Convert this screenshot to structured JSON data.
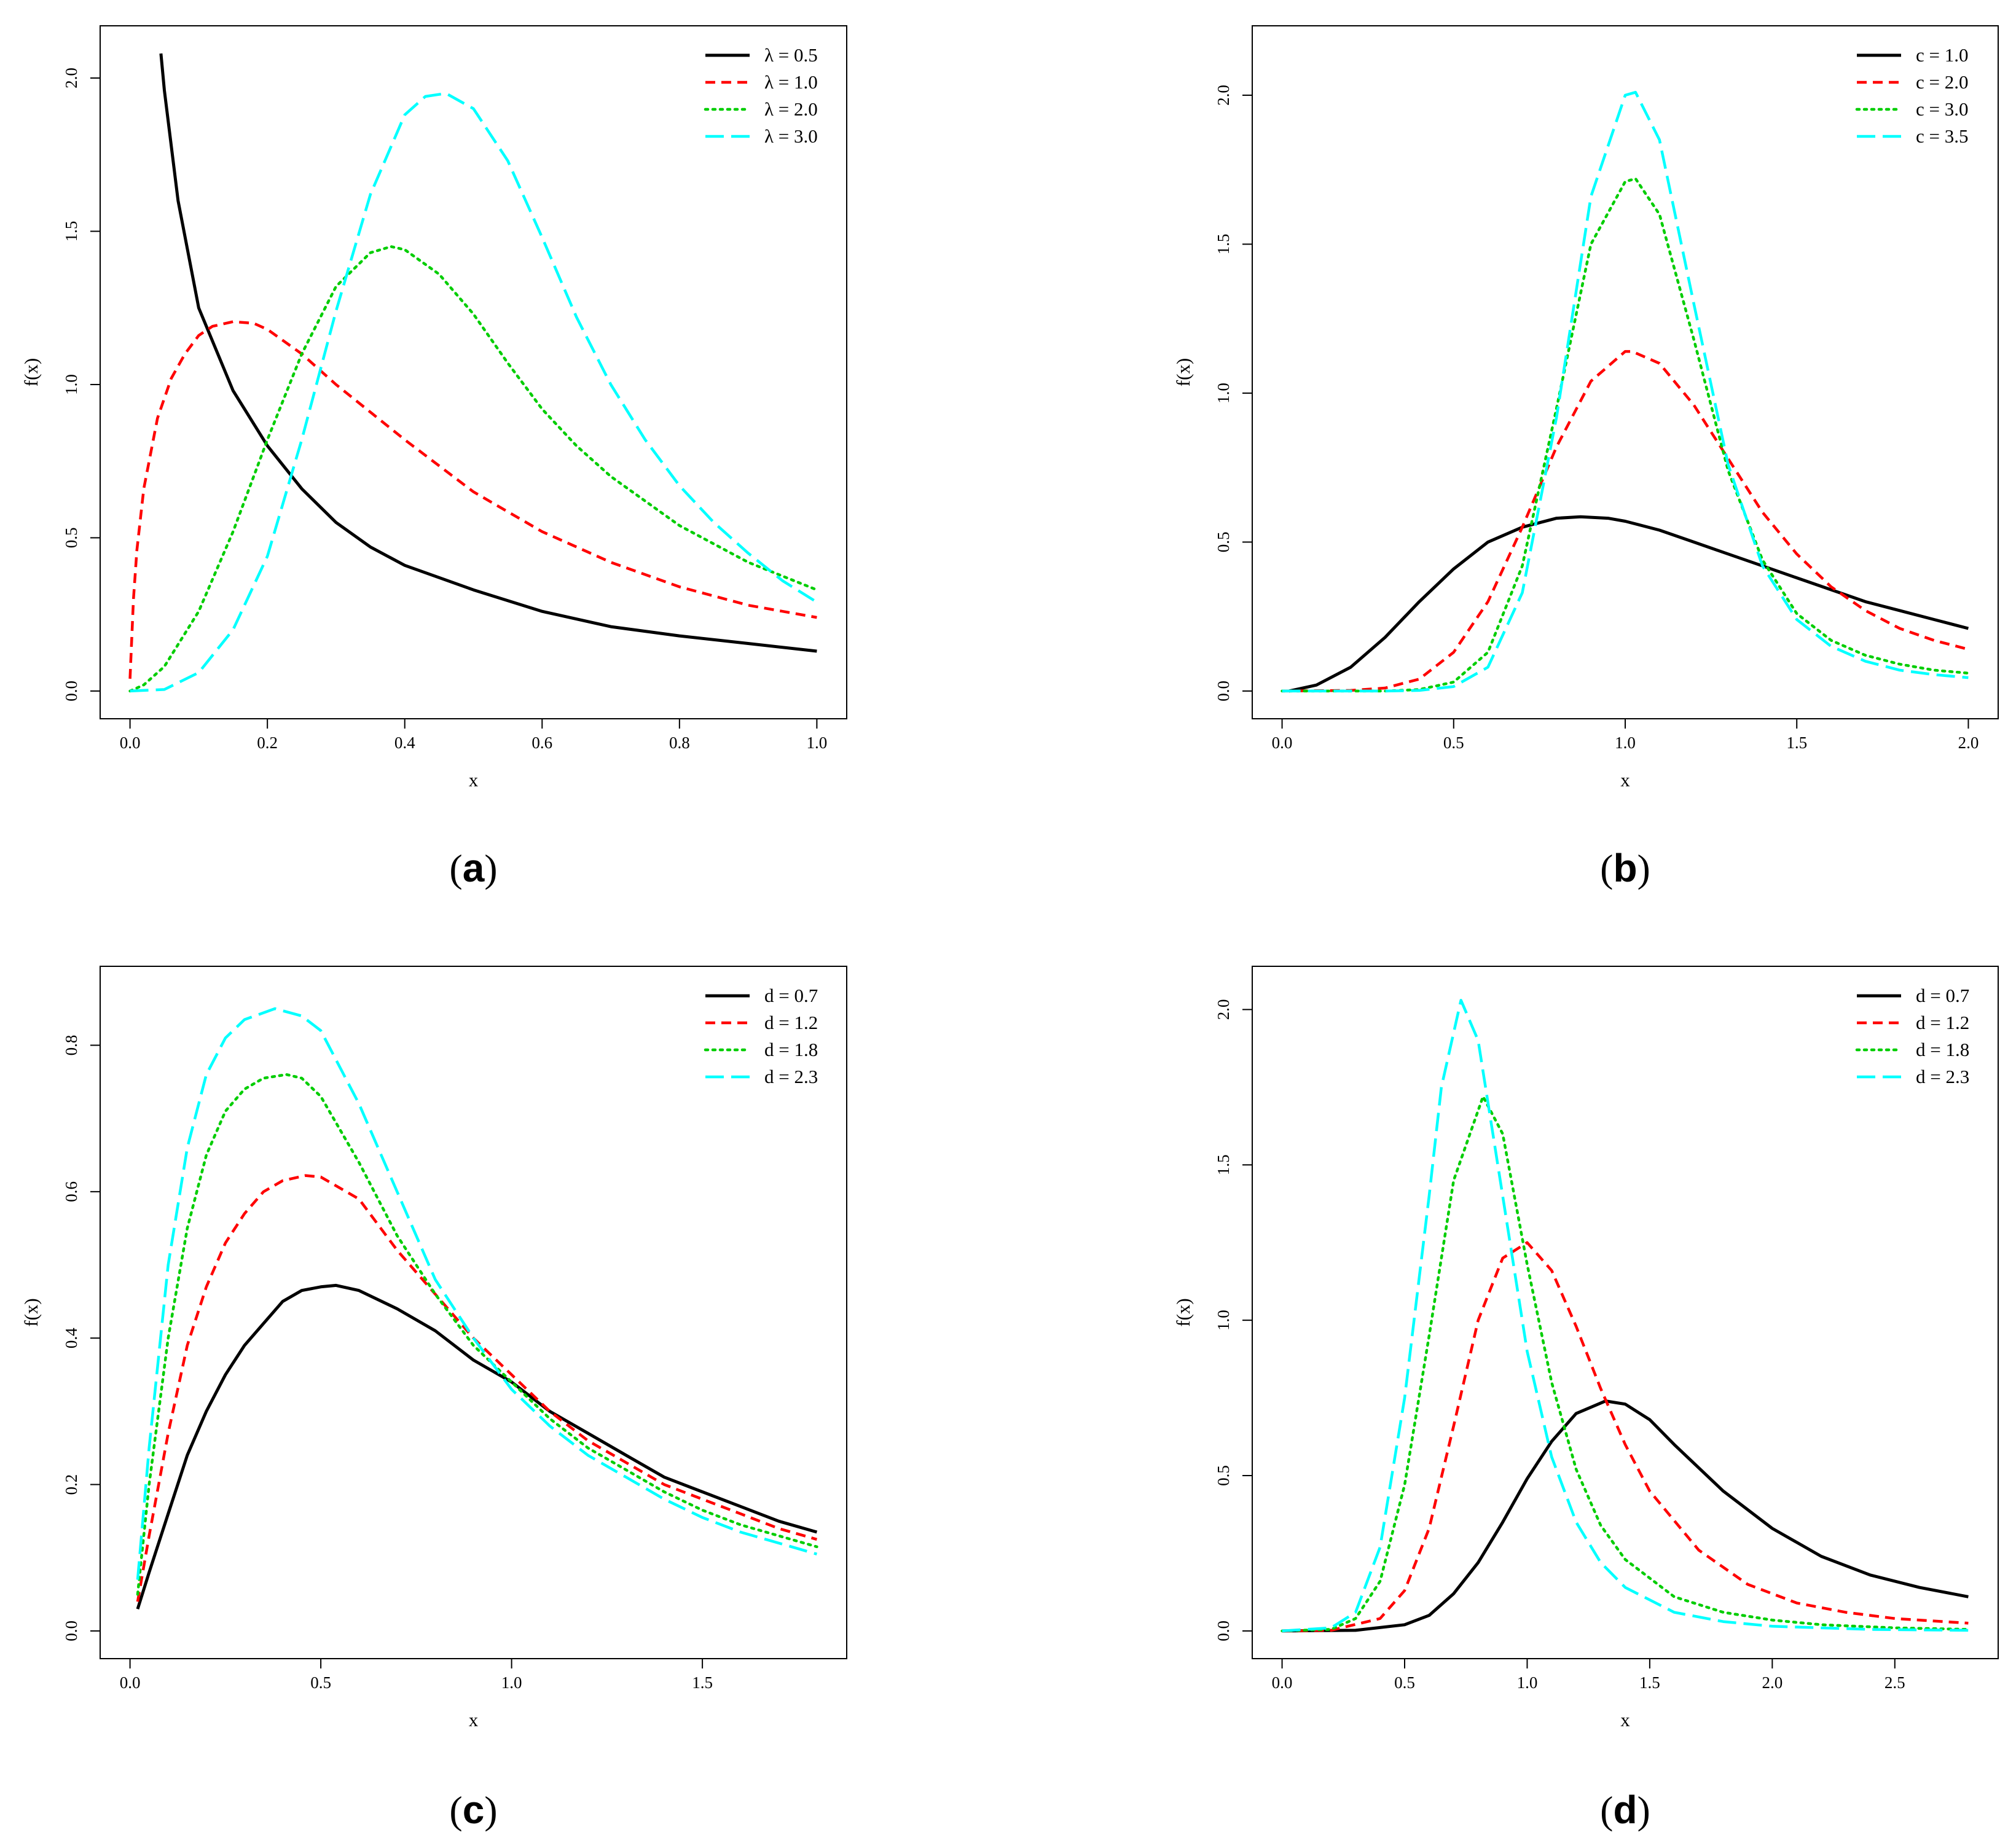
{
  "figure": {
    "y_label": "f(x)",
    "x_label": "x"
  },
  "styles": {
    "black": {
      "color": "#000000",
      "dash": "solid"
    },
    "red": {
      "color": "#ff0000",
      "dash": "dashed"
    },
    "green": {
      "color": "#00cd00",
      "dash": "dotted"
    },
    "cyan": {
      "color": "#00ffff",
      "dash": "longdash"
    }
  },
  "chart_data": [
    {
      "id": "a",
      "panel_label": "a",
      "type": "line",
      "xlabel": "x",
      "ylabel": "f(x)",
      "xlim": [
        0,
        1
      ],
      "ylim": [
        0,
        2.08
      ],
      "xticks": [
        0,
        0.2,
        0.4,
        0.6,
        0.8,
        1
      ],
      "xtick_labels": [
        "0.0",
        "0.2",
        "0.4",
        "0.6",
        "0.8",
        "1.0"
      ],
      "yticks": [
        0,
        0.5,
        1,
        1.5,
        2
      ],
      "ytick_labels": [
        "0.0",
        "0.5",
        "1.0",
        "1.5",
        "2.0"
      ],
      "legend_position": "top-right",
      "series": [
        {
          "name": "λ = 0.5",
          "style": "black",
          "x": [
            0.045,
            0.05,
            0.07,
            0.1,
            0.15,
            0.2,
            0.25,
            0.3,
            0.35,
            0.4,
            0.5,
            0.6,
            0.7,
            0.8,
            0.9,
            1.0
          ],
          "y": [
            2.08,
            1.96,
            1.6,
            1.25,
            0.98,
            0.8,
            0.66,
            0.55,
            0.47,
            0.41,
            0.33,
            0.26,
            0.21,
            0.18,
            0.155,
            0.13
          ]
        },
        {
          "name": "λ = 1.0",
          "style": "red",
          "x": [
            0.0,
            0.005,
            0.01,
            0.02,
            0.04,
            0.06,
            0.08,
            0.1,
            0.12,
            0.15,
            0.18,
            0.2,
            0.25,
            0.3,
            0.35,
            0.4,
            0.5,
            0.6,
            0.7,
            0.8,
            0.9,
            1.0
          ],
          "y": [
            0.04,
            0.3,
            0.46,
            0.66,
            0.89,
            1.02,
            1.1,
            1.16,
            1.19,
            1.205,
            1.2,
            1.18,
            1.1,
            1.0,
            0.91,
            0.82,
            0.65,
            0.52,
            0.42,
            0.34,
            0.28,
            0.24
          ]
        },
        {
          "name": "λ = 2.0",
          "style": "green",
          "x": [
            0.0,
            0.02,
            0.05,
            0.1,
            0.15,
            0.2,
            0.25,
            0.3,
            0.35,
            0.38,
            0.4,
            0.45,
            0.5,
            0.55,
            0.6,
            0.65,
            0.7,
            0.8,
            0.9,
            1.0
          ],
          "y": [
            0.0,
            0.02,
            0.08,
            0.26,
            0.52,
            0.82,
            1.1,
            1.32,
            1.43,
            1.45,
            1.44,
            1.36,
            1.23,
            1.07,
            0.92,
            0.8,
            0.7,
            0.54,
            0.42,
            0.33
          ]
        },
        {
          "name": "λ = 3.0",
          "style": "cyan",
          "x": [
            0.0,
            0.05,
            0.1,
            0.15,
            0.2,
            0.25,
            0.3,
            0.35,
            0.4,
            0.43,
            0.46,
            0.5,
            0.55,
            0.6,
            0.65,
            0.7,
            0.75,
            0.8,
            0.85,
            0.9,
            0.95,
            1.0
          ],
          "y": [
            0.0,
            0.005,
            0.06,
            0.2,
            0.44,
            0.82,
            1.24,
            1.62,
            1.88,
            1.94,
            1.95,
            1.9,
            1.73,
            1.48,
            1.22,
            1.0,
            0.82,
            0.67,
            0.55,
            0.45,
            0.36,
            0.29
          ]
        }
      ]
    },
    {
      "id": "b",
      "panel_label": "b",
      "type": "line",
      "xlabel": "x",
      "ylabel": "f(x)",
      "xlim": [
        0,
        2
      ],
      "ylim": [
        0,
        2.14
      ],
      "xticks": [
        0,
        0.5,
        1,
        1.5,
        2
      ],
      "xtick_labels": [
        "0.0",
        "0.5",
        "1.0",
        "1.5",
        "2.0"
      ],
      "yticks": [
        0,
        0.5,
        1,
        1.5,
        2
      ],
      "ytick_labels": [
        "0.0",
        "0.5",
        "1.0",
        "1.5",
        "2.0"
      ],
      "legend_position": "top-right",
      "series": [
        {
          "name": "c = 1.0",
          "style": "black",
          "x": [
            0.02,
            0.1,
            0.2,
            0.3,
            0.4,
            0.5,
            0.6,
            0.7,
            0.8,
            0.87,
            0.95,
            1.0,
            1.1,
            1.2,
            1.3,
            1.4,
            1.5,
            1.6,
            1.7,
            1.8,
            1.9,
            2.0
          ],
          "y": [
            0.0,
            0.02,
            0.08,
            0.18,
            0.3,
            0.41,
            0.5,
            0.55,
            0.58,
            0.585,
            0.58,
            0.57,
            0.54,
            0.5,
            0.46,
            0.42,
            0.38,
            0.34,
            0.3,
            0.27,
            0.24,
            0.21
          ]
        },
        {
          "name": "c = 2.0",
          "style": "red",
          "x": [
            0.0,
            0.2,
            0.3,
            0.4,
            0.5,
            0.6,
            0.7,
            0.8,
            0.9,
            1.0,
            1.02,
            1.1,
            1.2,
            1.3,
            1.4,
            1.5,
            1.6,
            1.7,
            1.8,
            1.9,
            2.0
          ],
          "y": [
            0.0,
            0.002,
            0.01,
            0.04,
            0.13,
            0.3,
            0.55,
            0.82,
            1.04,
            1.14,
            1.14,
            1.1,
            0.96,
            0.78,
            0.6,
            0.46,
            0.35,
            0.27,
            0.21,
            0.17,
            0.14
          ]
        },
        {
          "name": "c = 3.0",
          "style": "green",
          "x": [
            0.0,
            0.3,
            0.4,
            0.5,
            0.6,
            0.7,
            0.8,
            0.9,
            1.0,
            1.03,
            1.1,
            1.2,
            1.3,
            1.4,
            1.5,
            1.6,
            1.7,
            1.8,
            1.9,
            2.0
          ],
          "y": [
            0.0,
            0.0,
            0.005,
            0.03,
            0.13,
            0.42,
            0.95,
            1.5,
            1.71,
            1.72,
            1.6,
            1.18,
            0.74,
            0.44,
            0.26,
            0.17,
            0.12,
            0.09,
            0.07,
            0.06
          ]
        },
        {
          "name": "c = 3.5",
          "style": "cyan",
          "x": [
            0.0,
            0.3,
            0.4,
            0.5,
            0.6,
            0.7,
            0.8,
            0.9,
            1.0,
            1.03,
            1.1,
            1.2,
            1.3,
            1.4,
            1.5,
            1.6,
            1.7,
            1.8,
            1.9,
            2.0
          ],
          "y": [
            0.0,
            0.0,
            0.002,
            0.015,
            0.08,
            0.33,
            0.92,
            1.66,
            2.0,
            2.01,
            1.85,
            1.3,
            0.76,
            0.42,
            0.24,
            0.15,
            0.1,
            0.07,
            0.055,
            0.045
          ]
        }
      ]
    },
    {
      "id": "c",
      "panel_label": "c",
      "type": "line",
      "xlabel": "x",
      "ylabel": "f(x)",
      "xlim": [
        0,
        1.8
      ],
      "ylim": [
        0,
        0.87
      ],
      "xticks": [
        0,
        0.5,
        1,
        1.5
      ],
      "xtick_labels": [
        "0.0",
        "0.5",
        "1.0",
        "1.5"
      ],
      "yticks": [
        0,
        0.2,
        0.4,
        0.6,
        0.8
      ],
      "ytick_labels": [
        "0.0",
        "0.2",
        "0.4",
        "0.6",
        "0.8"
      ],
      "legend_position": "top-right",
      "series": [
        {
          "name": "d = 0.7",
          "style": "black",
          "x": [
            0.02,
            0.05,
            0.1,
            0.15,
            0.2,
            0.25,
            0.3,
            0.35,
            0.4,
            0.45,
            0.5,
            0.54,
            0.6,
            0.7,
            0.8,
            0.9,
            1.0,
            1.1,
            1.2,
            1.3,
            1.4,
            1.5,
            1.6,
            1.7,
            1.8
          ],
          "y": [
            0.03,
            0.08,
            0.16,
            0.24,
            0.3,
            0.35,
            0.39,
            0.42,
            0.45,
            0.465,
            0.47,
            0.472,
            0.465,
            0.44,
            0.41,
            0.37,
            0.34,
            0.3,
            0.27,
            0.24,
            0.21,
            0.19,
            0.17,
            0.15,
            0.135
          ]
        },
        {
          "name": "d = 1.2",
          "style": "red",
          "x": [
            0.02,
            0.05,
            0.1,
            0.15,
            0.2,
            0.25,
            0.3,
            0.35,
            0.4,
            0.46,
            0.5,
            0.6,
            0.7,
            0.8,
            0.9,
            1.0,
            1.1,
            1.2,
            1.3,
            1.4,
            1.5,
            1.6,
            1.7,
            1.8
          ],
          "y": [
            0.04,
            0.13,
            0.27,
            0.39,
            0.47,
            0.53,
            0.57,
            0.6,
            0.615,
            0.622,
            0.62,
            0.59,
            0.52,
            0.46,
            0.4,
            0.35,
            0.3,
            0.26,
            0.23,
            0.2,
            0.18,
            0.16,
            0.14,
            0.125
          ]
        },
        {
          "name": "d = 1.8",
          "style": "green",
          "x": [
            0.02,
            0.05,
            0.1,
            0.15,
            0.2,
            0.25,
            0.3,
            0.35,
            0.41,
            0.45,
            0.5,
            0.6,
            0.7,
            0.8,
            0.9,
            1.0,
            1.1,
            1.2,
            1.3,
            1.4,
            1.5,
            1.6,
            1.7,
            1.8
          ],
          "y": [
            0.05,
            0.2,
            0.4,
            0.55,
            0.65,
            0.71,
            0.74,
            0.755,
            0.76,
            0.755,
            0.73,
            0.64,
            0.54,
            0.46,
            0.39,
            0.34,
            0.29,
            0.25,
            0.22,
            0.19,
            0.165,
            0.145,
            0.13,
            0.115
          ]
        },
        {
          "name": "d = 2.3",
          "style": "cyan",
          "x": [
            0.02,
            0.05,
            0.1,
            0.15,
            0.2,
            0.25,
            0.3,
            0.38,
            0.45,
            0.5,
            0.6,
            0.7,
            0.8,
            0.9,
            1.0,
            1.1,
            1.2,
            1.3,
            1.4,
            1.5,
            1.6,
            1.7,
            1.8
          ],
          "y": [
            0.07,
            0.25,
            0.5,
            0.66,
            0.76,
            0.81,
            0.835,
            0.85,
            0.84,
            0.82,
            0.72,
            0.6,
            0.48,
            0.4,
            0.33,
            0.28,
            0.24,
            0.21,
            0.18,
            0.155,
            0.135,
            0.12,
            0.105
          ]
        }
      ]
    },
    {
      "id": "d",
      "panel_label": "d",
      "type": "line",
      "xlabel": "x",
      "ylabel": "f(x)",
      "xlim": [
        0,
        2.8
      ],
      "ylim": [
        0,
        2.05
      ],
      "xticks": [
        0,
        0.5,
        1,
        1.5,
        2,
        2.5
      ],
      "xtick_labels": [
        "0.0",
        "0.5",
        "1.0",
        "1.5",
        "2.0",
        "2.5"
      ],
      "yticks": [
        0,
        0.5,
        1,
        1.5,
        2
      ],
      "ytick_labels": [
        "0.0",
        "0.5",
        "1.0",
        "1.5",
        "2.0"
      ],
      "legend_position": "top-right",
      "series": [
        {
          "name": "d = 0.7",
          "style": "black",
          "x": [
            0.0,
            0.3,
            0.5,
            0.6,
            0.7,
            0.8,
            0.9,
            1.0,
            1.1,
            1.2,
            1.32,
            1.4,
            1.5,
            1.6,
            1.8,
            2.0,
            2.2,
            2.4,
            2.6,
            2.8
          ],
          "y": [
            0.0,
            0.002,
            0.02,
            0.05,
            0.12,
            0.22,
            0.35,
            0.49,
            0.61,
            0.7,
            0.74,
            0.73,
            0.68,
            0.6,
            0.45,
            0.33,
            0.24,
            0.18,
            0.14,
            0.11
          ]
        },
        {
          "name": "d = 1.2",
          "style": "red",
          "x": [
            0.0,
            0.2,
            0.4,
            0.5,
            0.6,
            0.7,
            0.8,
            0.9,
            1.0,
            1.1,
            1.2,
            1.3,
            1.4,
            1.5,
            1.7,
            1.9,
            2.1,
            2.3,
            2.5,
            2.8
          ],
          "y": [
            0.0,
            0.002,
            0.04,
            0.13,
            0.33,
            0.66,
            1.0,
            1.2,
            1.25,
            1.16,
            0.98,
            0.78,
            0.6,
            0.45,
            0.26,
            0.15,
            0.09,
            0.06,
            0.04,
            0.025
          ]
        },
        {
          "name": "d = 1.8",
          "style": "green",
          "x": [
            0.0,
            0.2,
            0.3,
            0.4,
            0.5,
            0.6,
            0.7,
            0.82,
            0.9,
            1.0,
            1.1,
            1.2,
            1.3,
            1.4,
            1.6,
            1.8,
            2.0,
            2.2,
            2.5,
            2.8
          ],
          "y": [
            0.0,
            0.005,
            0.04,
            0.16,
            0.47,
            0.95,
            1.45,
            1.72,
            1.6,
            1.18,
            0.8,
            0.52,
            0.34,
            0.23,
            0.11,
            0.06,
            0.035,
            0.02,
            0.01,
            0.005
          ]
        },
        {
          "name": "d = 2.3",
          "style": "cyan",
          "x": [
            0.0,
            0.2,
            0.3,
            0.4,
            0.5,
            0.6,
            0.65,
            0.73,
            0.8,
            0.9,
            1.0,
            1.1,
            1.2,
            1.3,
            1.4,
            1.6,
            1.8,
            2.0,
            2.4,
            2.8
          ],
          "y": [
            0.0,
            0.01,
            0.06,
            0.27,
            0.75,
            1.4,
            1.75,
            2.03,
            1.9,
            1.4,
            0.9,
            0.56,
            0.35,
            0.22,
            0.14,
            0.06,
            0.03,
            0.015,
            0.005,
            0.002
          ]
        }
      ]
    }
  ]
}
